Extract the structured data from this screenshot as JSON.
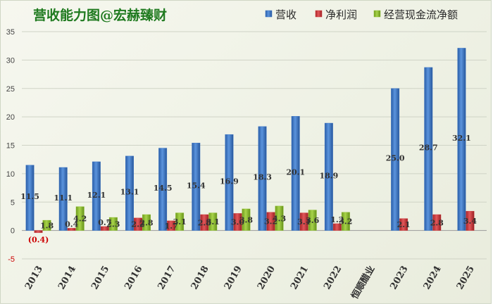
{
  "chart_data": {
    "type": "bar",
    "title": "营收能力图@宏赫臻财",
    "categories": [
      "2013",
      "2014",
      "2015",
      "2016",
      "2017",
      "2018",
      "2019",
      "2020",
      "2021",
      "2022",
      "恒顺醋业",
      "2023",
      "2024",
      "2025"
    ],
    "series": [
      {
        "name": "营收",
        "color": "#3a73c4",
        "values": [
          11.5,
          11.1,
          12.1,
          13.1,
          14.5,
          15.4,
          16.9,
          18.3,
          20.1,
          18.9,
          null,
          25.0,
          28.7,
          32.1
        ],
        "labels": [
          "11.5",
          "11.1",
          "12.1",
          "13.1",
          "14.5",
          "15.4",
          "16.9",
          "18.3",
          "20.1",
          "18.9",
          null,
          "25.0",
          "28.7",
          "32.1"
        ]
      },
      {
        "name": "净利润",
        "color": "#d0383a",
        "values": [
          -0.4,
          0.4,
          0.7,
          2.2,
          1.7,
          2.8,
          3.0,
          3.2,
          3.1,
          1.2,
          null,
          2.1,
          2.8,
          3.4
        ],
        "labels": [
          "(0.4)",
          "0.4",
          "0.7",
          "2.2",
          "1.7",
          "2.8",
          "3.0",
          "3.2",
          "3.1",
          "1.2",
          null,
          "2.1",
          "2.8",
          "3.4"
        ]
      },
      {
        "name": "经营现金流净额",
        "color": "#8cbe2e",
        "values": [
          1.8,
          4.2,
          2.3,
          2.8,
          3.1,
          3.1,
          3.8,
          4.3,
          3.6,
          3.2,
          null,
          null,
          null,
          null
        ],
        "labels": [
          "1.8",
          "4.2",
          "2.3",
          "2.8",
          "3.1",
          "3.1",
          "3.8",
          "4.3",
          "3.6",
          "3.2",
          null,
          null,
          null,
          null
        ]
      }
    ],
    "y_ticks": [
      "35",
      "30",
      "25",
      "20",
      "15",
      "10",
      "5",
      "0",
      "-5"
    ],
    "ylim": [
      -5,
      35
    ],
    "grid": true,
    "legend_position": "top-right"
  }
}
